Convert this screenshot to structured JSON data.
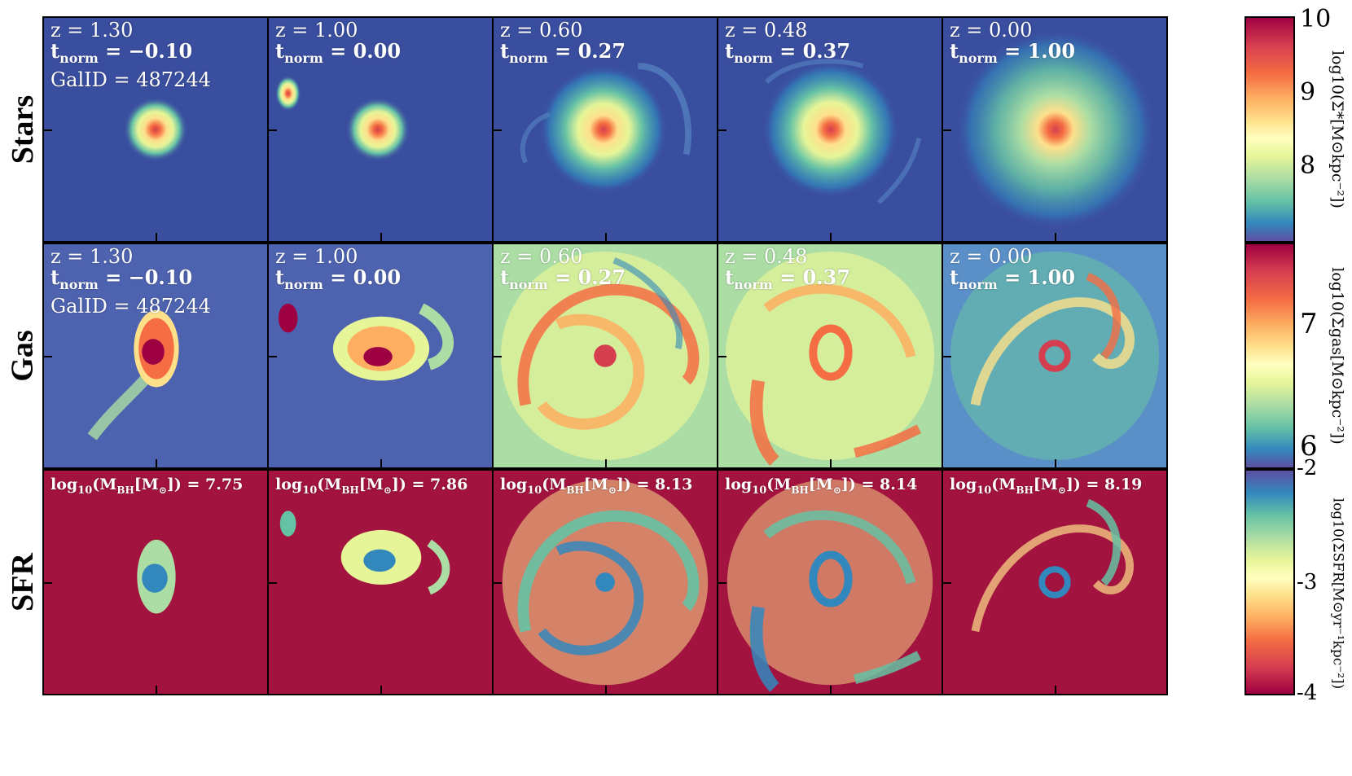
{
  "rows": [
    {
      "label": "Stars",
      "panels": [
        {
          "line1": "z = 1.30",
          "line2_prefix": "t",
          "line2_sub": "norm",
          "line2_eq": " = ",
          "line2_val": "−0.10",
          "line3": "GalID = 487244"
        },
        {
          "line1": "z = 1.00",
          "line2_prefix": "t",
          "line2_sub": "norm",
          "line2_eq": " = ",
          "line2_val": "0.00"
        },
        {
          "line1": "z = 0.60",
          "line2_prefix": "t",
          "line2_sub": "norm",
          "line2_eq": " = ",
          "line2_val": "0.27"
        },
        {
          "line1": "z = 0.48",
          "line2_prefix": "t",
          "line2_sub": "norm",
          "line2_eq": " = ",
          "line2_val": "0.37"
        },
        {
          "line1": "z = 0.00",
          "line2_prefix": "t",
          "line2_sub": "norm",
          "line2_eq": " = ",
          "line2_val": "1.00"
        }
      ]
    },
    {
      "label": "Gas",
      "panels": [
        {
          "line1": "z = 1.30",
          "line2_prefix": "t",
          "line2_sub": "norm",
          "line2_eq": " = ",
          "line2_val": "−0.10",
          "line3": "GalID = 487244"
        },
        {
          "line1": "z = 1.00",
          "line2_prefix": "t",
          "line2_sub": "norm",
          "line2_eq": " = ",
          "line2_val": "0.00"
        },
        {
          "line1": "z = 0.60",
          "line2_prefix": "t",
          "line2_sub": "norm",
          "line2_eq": " = ",
          "line2_val": "0.27"
        },
        {
          "line1": "z = 0.48",
          "line2_prefix": "t",
          "line2_sub": "norm",
          "line2_eq": " = ",
          "line2_val": "0.37"
        },
        {
          "line1": "z = 0.00",
          "line2_prefix": "t",
          "line2_sub": "norm",
          "line2_eq": " = ",
          "line2_val": "1.00"
        }
      ]
    },
    {
      "label": "SFR",
      "panels": [
        {
          "bh_prefix": "log",
          "bh_base": "10",
          "bh_mid": "(M",
          "bh_sub": "BH",
          "bh_unit": "[M",
          "bh_sun": "⊙",
          "bh_end": "]) = ",
          "bh_val": "7.75"
        },
        {
          "bh_prefix": "log",
          "bh_base": "10",
          "bh_mid": "(M",
          "bh_sub": "BH",
          "bh_unit": "[M",
          "bh_sun": "⊙",
          "bh_end": "]) = ",
          "bh_val": "7.86"
        },
        {
          "bh_prefix": "log",
          "bh_base": "10",
          "bh_mid": "(M",
          "bh_sub": "BH",
          "bh_unit": "[M",
          "bh_sun": "⊙",
          "bh_end": "]) = ",
          "bh_val": "8.13"
        },
        {
          "bh_prefix": "log",
          "bh_base": "10",
          "bh_mid": "(M",
          "bh_sub": "BH",
          "bh_unit": "[M",
          "bh_sun": "⊙",
          "bh_end": "]) = ",
          "bh_val": "8.14"
        },
        {
          "bh_prefix": "log",
          "bh_base": "10",
          "bh_mid": "(M",
          "bh_sub": "BH",
          "bh_unit": "[M",
          "bh_sun": "⊙",
          "bh_end": "]) = ",
          "bh_val": "8.19"
        }
      ]
    }
  ],
  "colorbars": [
    {
      "ticks": [
        "10",
        "9",
        "8"
      ],
      "label": "log10(Σ*[M⊙kpc⁻²])"
    },
    {
      "ticks": [
        "7",
        "6"
      ],
      "label": "log10(Σgas[M⊙kpc⁻²])"
    },
    {
      "ticks": [
        "-2",
        "-3",
        "-4"
      ],
      "label": "log10(ΣSFR[M⊙yr⁻¹kpc⁻²])"
    }
  ],
  "colors": {
    "stars_bg": "#3a4ea0",
    "gas_bg": "#4e63b0",
    "sfr_bg": "#a3133f",
    "spectral": [
      "#9e0142",
      "#d53e4f",
      "#f46d43",
      "#fdae61",
      "#fee08b",
      "#ffffbf",
      "#e6f598",
      "#abdda4",
      "#66c2a5",
      "#3288bd",
      "#5e4fa2"
    ]
  }
}
